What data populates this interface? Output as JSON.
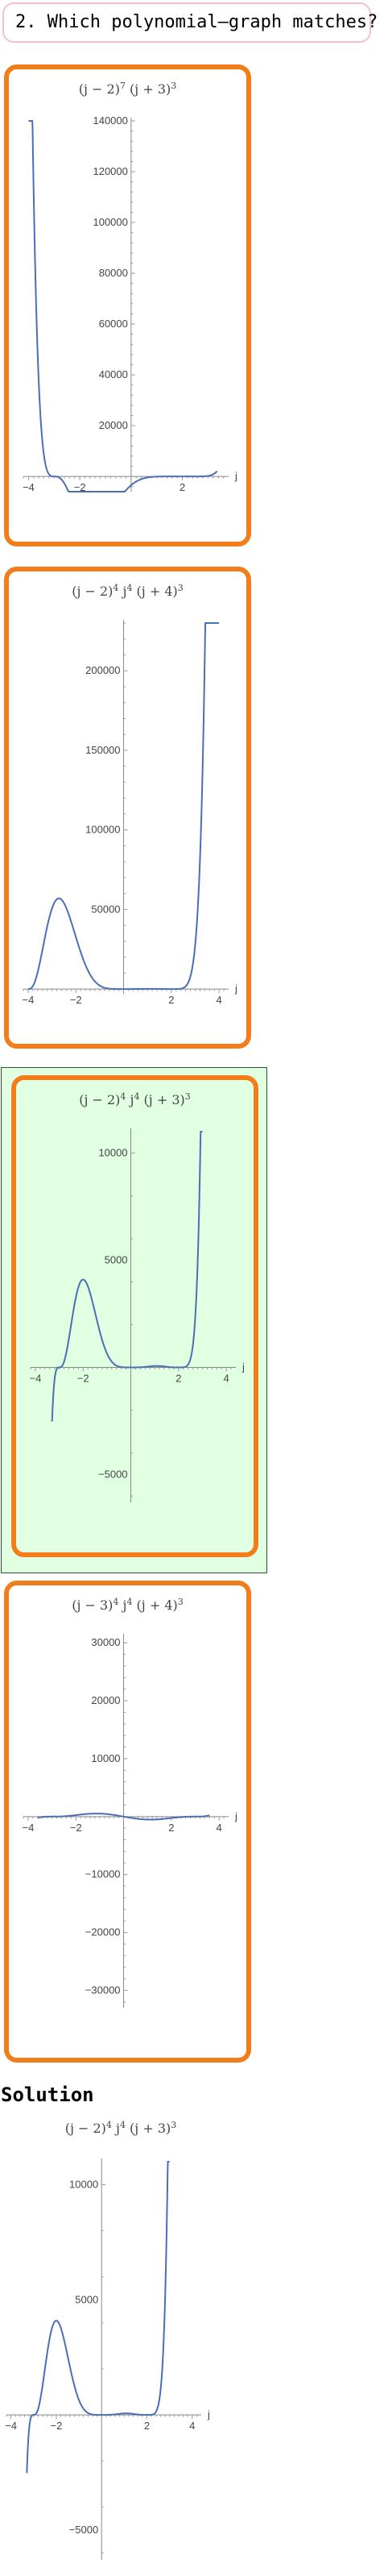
{
  "question": {
    "text": "2. Which polynomial—graph matches?"
  },
  "colors": {
    "card_border": "#f47d1b",
    "correct_bg": "#e1ffe1",
    "curve": "#4a6fb5",
    "question_border": "#f5c2c7"
  },
  "solution": {
    "heading": "Solution"
  },
  "chart_data": [
    {
      "type": "line",
      "title_parts": [
        "(j − 2)",
        "7",
        " (j + 3)",
        "3"
      ],
      "xlabel": "j",
      "xlim": [
        -4.2,
        3.8
      ],
      "ylim": [
        -6000,
        140000
      ],
      "x_ticks": [
        "-4",
        "-2",
        "2"
      ],
      "y_ticks": [
        20000,
        40000,
        60000,
        80000,
        100000,
        120000,
        140000
      ],
      "y_tick_labels": [
        "20000",
        "40000",
        "60000",
        "80000",
        "100000",
        "120000",
        "140000"
      ],
      "function": "pow(j-2,7)*pow(j+3,3)",
      "domain": [
        -4,
        3.35
      ],
      "selected": false
    },
    {
      "type": "line",
      "title_parts": [
        "(j − 2)",
        "4",
        " j",
        "4",
        " (j + 4)",
        "3"
      ],
      "xlabel": "j",
      "xlim": [
        -4.2,
        4.4
      ],
      "ylim": [
        -3000,
        230000
      ],
      "x_ticks": [
        "-4",
        "-2",
        "2",
        "4"
      ],
      "y_ticks": [
        50000,
        100000,
        150000,
        200000
      ],
      "y_tick_labels": [
        "50000",
        "100000",
        "150000",
        "200000"
      ],
      "function": "pow(j-2,4)*pow(j,4)*pow(j+4,3)",
      "domain": [
        -4,
        4
      ],
      "selected": false
    },
    {
      "type": "line",
      "title_parts": [
        "(j − 2)",
        "4",
        " j",
        "4",
        " (j + 3)",
        "3"
      ],
      "xlabel": "j",
      "xlim": [
        -4.2,
        4.4
      ],
      "ylim": [
        -6300,
        11000
      ],
      "x_ticks": [
        "-4",
        "-2",
        "2",
        "4"
      ],
      "y_ticks": [
        -5000,
        5000,
        10000
      ],
      "y_tick_labels": [
        "−5000",
        "5000",
        "10000"
      ],
      "function": "pow(j-2,4)*pow(j,4)*pow(j+3,3)",
      "domain": [
        -3.3,
        3
      ],
      "selected": true
    },
    {
      "type": "line",
      "title_parts": [
        "(j − 3)",
        "4",
        " j",
        "4",
        " (j + 4)",
        "3"
      ],
      "xlabel": "j",
      "xlim": [
        -4.2,
        4.4
      ],
      "ylim": [
        -33000,
        31000
      ],
      "x_ticks": [
        "-4",
        "-2",
        "2",
        "4"
      ],
      "y_ticks": [
        -30000,
        -20000,
        -10000,
        10000,
        20000,
        30000
      ],
      "y_tick_labels": [
        "−30000",
        "−20000",
        "−10000",
        "10000",
        "20000",
        "30000"
      ],
      "function": "pow(j-3,3)*j*pow(j+3,3)",
      "domain": [
        -3.6,
        3.6
      ],
      "selected": false
    },
    {
      "type": "line",
      "title_parts": [
        "(j − 2)",
        "4",
        " j",
        "4",
        " (j + 3)",
        "3"
      ],
      "xlabel": "j",
      "xlim": [
        -4.2,
        4.4
      ],
      "ylim": [
        -6300,
        11000
      ],
      "x_ticks": [
        "-4",
        "-2",
        "2",
        "4"
      ],
      "y_ticks": [
        -5000,
        5000,
        10000
      ],
      "y_tick_labels": [
        "−5000",
        "5000",
        "10000"
      ],
      "function": "pow(j-2,4)*pow(j,4)*pow(j+3,3)",
      "domain": [
        -3.3,
        3
      ],
      "selected": false
    }
  ]
}
